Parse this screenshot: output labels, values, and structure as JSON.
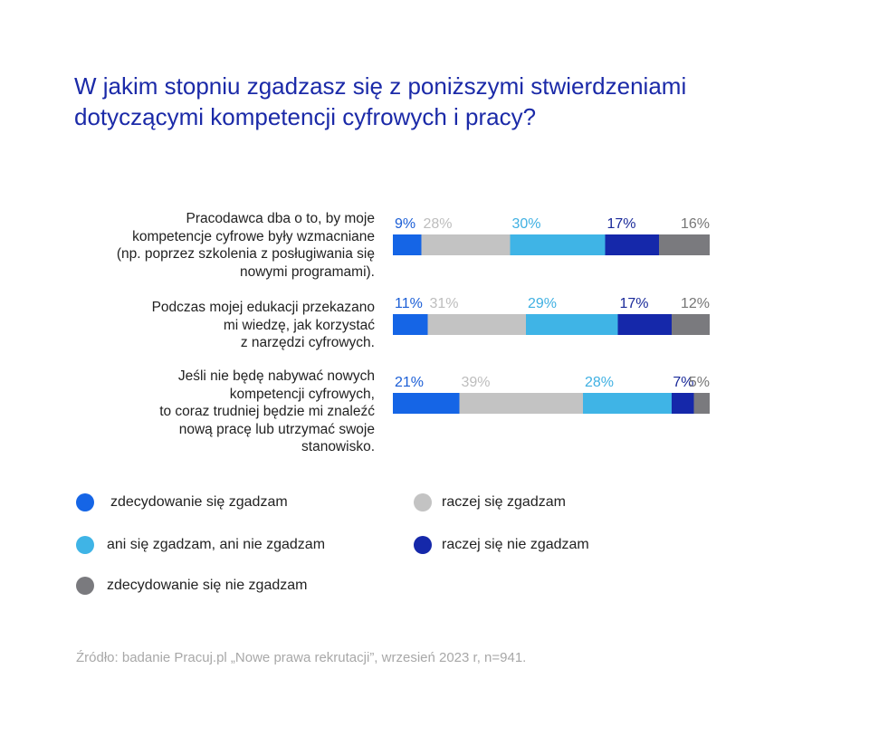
{
  "title_lines": [
    "W jakim stopniu zgadzasz się z poniższymi stwierdzeniami",
    "dotyczącymi kompetencji cyfrowych i pracy?"
  ],
  "colors": {
    "title": "#1b2aa8",
    "series": [
      "#1565e6",
      "#c3c3c3",
      "#3fb4e6",
      "#1528aa",
      "#7a7a7e"
    ],
    "labels": [
      "#1b5ed6",
      "#bdbdbd",
      "#3fb0e2",
      "#1a2a9a",
      "#767676"
    ]
  },
  "chart_data": {
    "type": "bar",
    "orientation": "horizontal",
    "stacked": true,
    "categories": [
      [
        "Pracodawca dba o to, by moje",
        "kompetencje cyfrowe były wzmacniane",
        "(np. poprzez szkolenia z posługiwania się",
        "nowymi programami)."
      ],
      [
        "Podczas mojej edukacji przekazano",
        "mi wiedzę, jak korzystać",
        "z narzędzi cyfrowych."
      ],
      [
        "Jeśli nie będę nabywać nowych",
        "kompetencji cyfrowych,",
        "to coraz trudniej będzie mi znaleźć",
        "nową pracę lub utrzymać swoje",
        "stanowisko."
      ]
    ],
    "series": [
      {
        "name": "zdecydowanie się zgadzam",
        "values": [
          9,
          11,
          21
        ],
        "labels": [
          "9%",
          "11%",
          "21%"
        ]
      },
      {
        "name": "raczej się zgadzam",
        "values": [
          28,
          31,
          39
        ],
        "labels": [
          "28%",
          "31%",
          "39%"
        ]
      },
      {
        "name": "ani się zgadzam, ani nie zgadzam",
        "values": [
          30,
          29,
          28
        ],
        "labels": [
          "30%",
          "29%",
          "28%"
        ]
      },
      {
        "name": "raczej się nie zgadzam",
        "values": [
          17,
          17,
          7
        ],
        "labels": [
          "17%",
          "17%",
          "7%"
        ]
      },
      {
        "name": "zdecydowanie się nie zgadzam",
        "values": [
          16,
          12,
          5
        ],
        "labels": [
          "16%",
          "12%",
          "5%"
        ]
      }
    ],
    "xlim": [
      0,
      100
    ],
    "grid": false,
    "legend_position": "bottom"
  },
  "source": "Źródło: badanie Pracuj.pl „Nowe prawa rekrutacji”, wrzesień 2023 r, n=941."
}
